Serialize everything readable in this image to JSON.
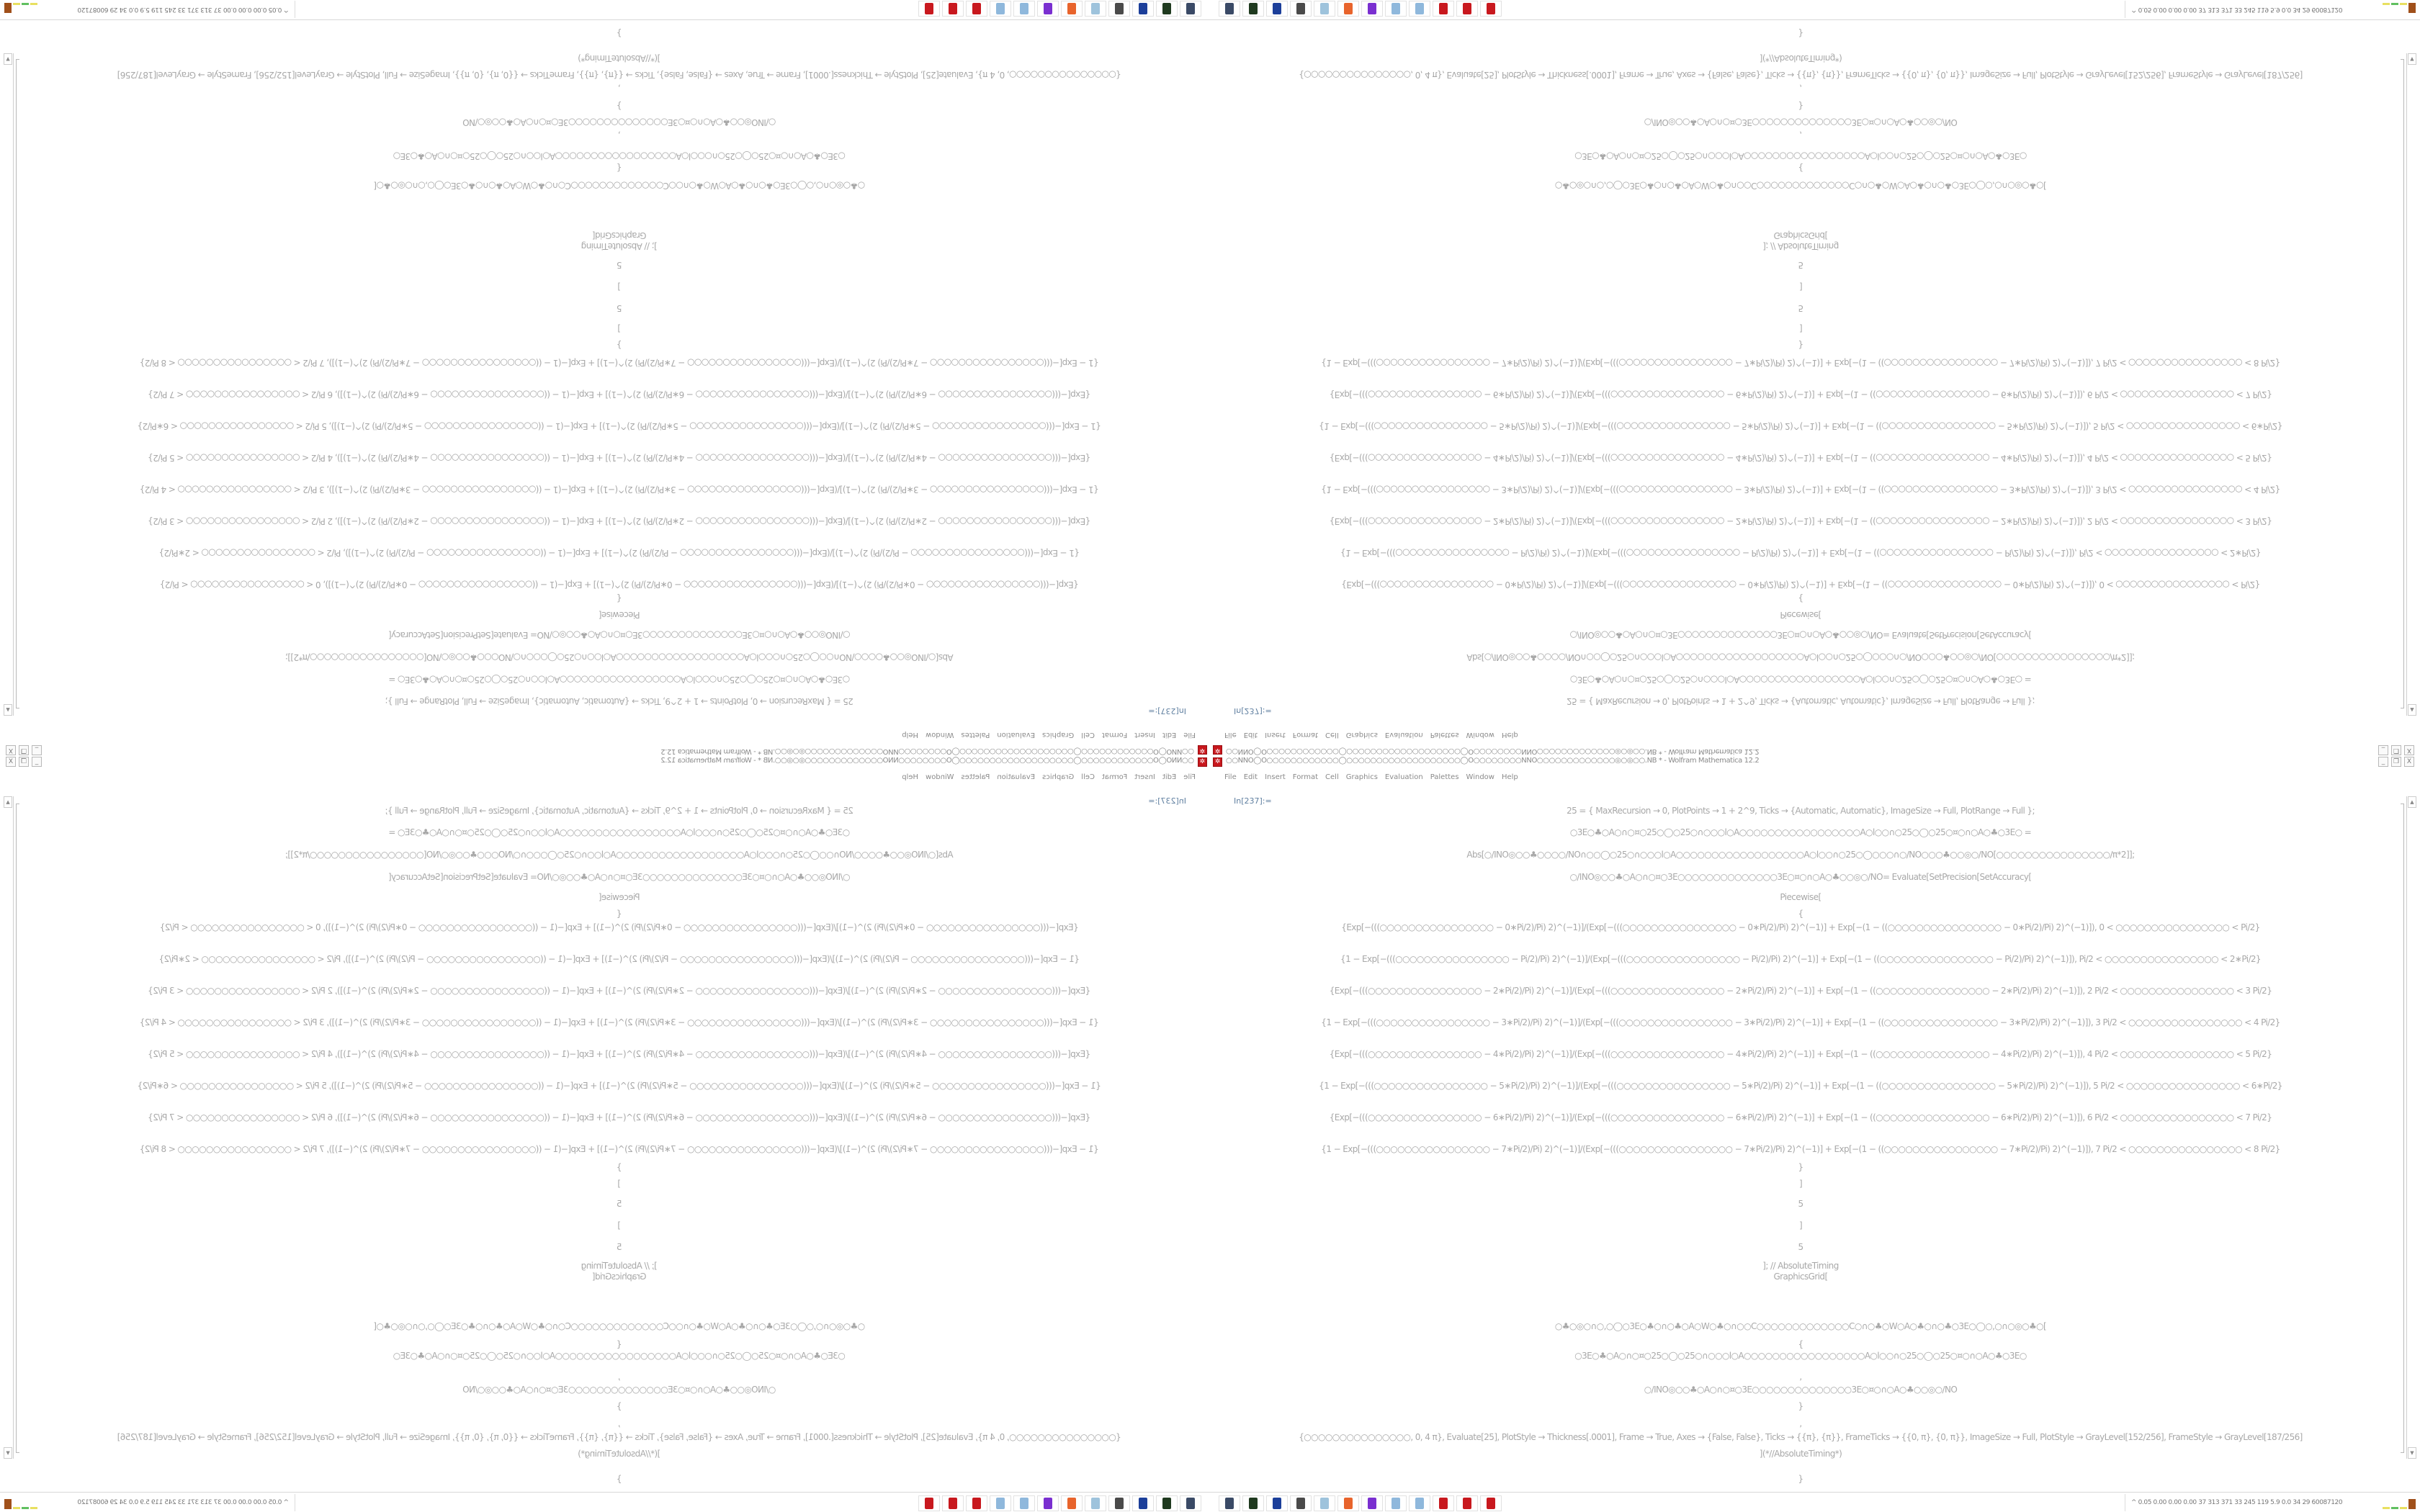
{
  "window": {
    "title": "○○NNO◯O○○○○○○○○○○○○◯○○○○○○○○○○○○○○○○○○○◯O○○○○○○○○NNO○○○○○○○○○○○○○◎○◎○○.NB * - Wolfram Mathematica 12.2",
    "app_icon": "mathematica-icon",
    "buttons": {
      "minimize": "_",
      "restore": "❐",
      "close": "X"
    }
  },
  "menu": [
    "File",
    "Edit",
    "Insert",
    "Format",
    "Cell",
    "Graphics",
    "Evaluation",
    "Palettes",
    "Window",
    "Help"
  ],
  "notebook": {
    "input_label": "In[237]:=",
    "lines": [
      "25 = {   MaxRecursion → 0, PlotPoints → 1 + 2^9, Ticks → {Automatic, Automatic}, ImageSize → Full, PlotRange → Full   };",
      "○3E○♣○A○∩○¤○25○◯○25○∩○○○l○A○○○○○○○○○○○○○○○○○A○l○○∩○25○◯○25○¤○∩○A○♣○3E○   =",
      "Abs[○/INO◎○○♣○○○○/NO∩○○◯○25○∩○○○l○A○○○○○○○○○○○○○○○○○○A○l○○∩○25○◯○○○∩○/NO○○○♣○○◎○/NO[○○○○○○○○○○○○○○○○/π*2]];",
      "○/INO◎○○♣○A○∩○¤○3E○○○○○○○○○○○○○○3E○¤○∩○A○♣○○◎○/NO= Evaluate[SetPrecision[SetAccuracy[",
      "Piecewise[",
      "{",
      "{Exp[−(((○○○○○○○○○○○○○○○○ − 0∗Pi/2)/Pi) 2)^(−1)]/(Exp[−(((○○○○○○○○○○○○○○○○ − 0∗Pi/2)/Pi) 2)^(−1)] + Exp[−(1 − ((○○○○○○○○○○○○○○○○ − 0∗Pi/2)/Pi) 2)^(−1)]), 0 < ○○○○○○○○○○○○○○○○ < Pi/2}",
      "{1 − Exp[−(((○○○○○○○○○○○○○○○○ − Pi/2)/Pi) 2)^(−1)]/(Exp[−(((○○○○○○○○○○○○○○○○ − Pi/2)/Pi) 2)^(−1)] + Exp[−(1 − ((○○○○○○○○○○○○○○○○ − Pi/2)/Pi) 2)^(−1)]), Pi/2 < ○○○○○○○○○○○○○○○○ < 2∗Pi/2}",
      "{Exp[−(((○○○○○○○○○○○○○○○○ − 2∗Pi/2)/Pi) 2)^(−1)]/(Exp[−(((○○○○○○○○○○○○○○○○ − 2∗Pi/2)/Pi) 2)^(−1)] + Exp[−(1 − ((○○○○○○○○○○○○○○○○ − 2∗Pi/2)/Pi) 2)^(−1)]), 2 Pi/2 < ○○○○○○○○○○○○○○○○ < 3 Pi/2}",
      "{1 − Exp[−(((○○○○○○○○○○○○○○○○ − 3∗Pi/2)/Pi) 2)^(−1)]/(Exp[−(((○○○○○○○○○○○○○○○○ − 3∗Pi/2)/Pi) 2)^(−1)] + Exp[−(1 − ((○○○○○○○○○○○○○○○○ − 3∗Pi/2)/Pi) 2)^(−1)]), 3 Pi/2 < ○○○○○○○○○○○○○○○○ < 4 Pi/2}",
      "{Exp[−(((○○○○○○○○○○○○○○○○ − 4∗Pi/2)/Pi) 2)^(−1)]/(Exp[−(((○○○○○○○○○○○○○○○○ − 4∗Pi/2)/Pi) 2)^(−1)] + Exp[−(1 − ((○○○○○○○○○○○○○○○○ − 4∗Pi/2)/Pi) 2)^(−1)]), 4 Pi/2 < ○○○○○○○○○○○○○○○○ < 5 Pi/2}",
      "{1 − Exp[−(((○○○○○○○○○○○○○○○○ − 5∗Pi/2)/Pi) 2)^(−1)]/(Exp[−(((○○○○○○○○○○○○○○○○ − 5∗Pi/2)/Pi) 2)^(−1)] + Exp[−(1 − ((○○○○○○○○○○○○○○○○ − 5∗Pi/2)/Pi) 2)^(−1)]), 5 Pi/2 < ○○○○○○○○○○○○○○○○ < 6∗Pi/2}",
      "{Exp[−(((○○○○○○○○○○○○○○○○ − 6∗Pi/2)/Pi) 2)^(−1)]/(Exp[−(((○○○○○○○○○○○○○○○○ − 6∗Pi/2)/Pi) 2)^(−1)] + Exp[−(1 − ((○○○○○○○○○○○○○○○○ − 6∗Pi/2)/Pi) 2)^(−1)]), 6 Pi/2 < ○○○○○○○○○○○○○○○○ < 7 Pi/2}",
      "{1 − Exp[−(((○○○○○○○○○○○○○○○○ − 7∗Pi/2)/Pi) 2)^(−1)]/(Exp[−(((○○○○○○○○○○○○○○○○ − 7∗Pi/2)/Pi) 2)^(−1)] + Exp[−(1 − ((○○○○○○○○○○○○○○○○ − 7∗Pi/2)/Pi) 2)^(−1)]), 7 Pi/2 < ○○○○○○○○○○○○○○○○ < 8 Pi/2}",
      "}",
      "]",
      "5",
      "]",
      "5",
      "]; // AbsoluteTiming",
      "GraphicsGrid[",
      "○♣○◎○∩○,○◯○3E○♣○∩○♣○A○W○♣○∩○○C○○○○○○○○○○○○○C○∩○♣○W○A○♣○∩○♣○3E○◯○,○∩○◎○♣○[",
      "{",
      "○3E○♣○A○∩○¤○25○◯○25○∩○○○l○A○○○○○○○○○○○○○○○○○A○l○○∩○25○◯○25○¤○∩○A○♣○3E○",
      ",",
      "○/INO◎○○♣○A○∩○¤○3E○○○○○○○○○○○○○○3E○¤○∩○A○♣○○◎○/NO",
      "}",
      ",",
      "{○○○○○○○○○○○○○○○, 0, 4 π}, Evaluate[25], PlotStyle → Thickness[.0001], Frame → True, Axes → {False, False}, Ticks → {{π}, {π}}, FrameTicks → {{0, π}, {0, π}}, ImageSize → Full, PlotStyle → GrayLevel[152/256], FrameStyle → GrayLevel[187/256]",
      "](*//AbsoluteTiming*)",
      "}"
    ]
  },
  "taskbar": {
    "icons": [
      "remote-desktop-icon",
      "terminal-icon",
      "floppy-64-icon",
      "system-monitor-icon",
      "notepad-icon",
      "firefox-icon",
      "emulator-icon",
      "calculator-icon",
      "calculator-icon",
      "mathematica-icon",
      "mathematica-icon",
      "mathematica-icon"
    ],
    "tray_text": "^  0.05 0.00 0.00 0.00   37   313   371   33   245   119   5.9   0.0   34   29   60087120"
  },
  "colors": {
    "text": "#a8a8a8",
    "accent_red": "#c8181e",
    "label_blue": "#5f7fa0"
  }
}
